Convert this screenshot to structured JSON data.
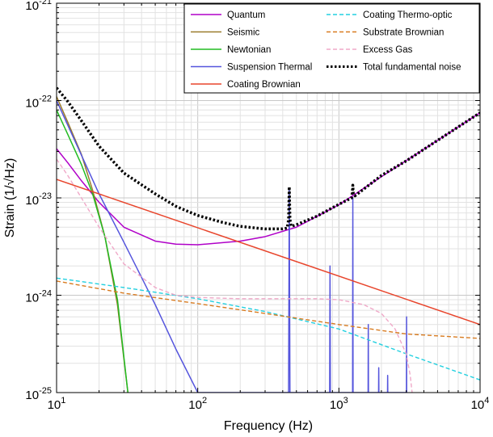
{
  "chart_data": {
    "type": "line",
    "title": "",
    "xlabel": "Frequency (Hz)",
    "ylabel": "Strain (1/√Hz)",
    "xscale": "log",
    "yscale": "log",
    "xlim": [
      10,
      10000
    ],
    "ylim": [
      1e-25,
      1e-21
    ],
    "x_tick_labels": [
      {
        "base": "10",
        "exp": "1"
      },
      {
        "base": "10",
        "exp": "2"
      },
      {
        "base": "10",
        "exp": "3"
      },
      {
        "base": "10",
        "exp": "4"
      }
    ],
    "y_tick_labels": [
      {
        "base": "10",
        "exp": "-25"
      },
      {
        "base": "10",
        "exp": "-24"
      },
      {
        "base": "10",
        "exp": "-23"
      },
      {
        "base": "10",
        "exp": "-22"
      },
      {
        "base": "10",
        "exp": "-21"
      }
    ],
    "grid": true,
    "legend_position": "top-right",
    "series": [
      {
        "name": "Quantum",
        "color": "#b000c8",
        "style": "solid",
        "x": [
          10,
          12,
          15,
          20,
          30,
          50,
          70,
          100,
          200,
          300,
          500,
          1000,
          2000,
          5000,
          10000
        ],
        "y": [
          3.2e-23,
          2.3e-23,
          1.5e-23,
          9e-24,
          5e-24,
          3.6e-24,
          3.35e-24,
          3.3e-24,
          3.6e-24,
          4e-24,
          5e-24,
          8.5e-24,
          1.65e-23,
          3.9e-23,
          7.5e-23
        ]
      },
      {
        "name": "Seismic",
        "color": "#9a7b2c",
        "style": "solid",
        "x": [
          10,
          12,
          15,
          18,
          22,
          27,
          32
        ],
        "y": [
          1.1e-22,
          6e-23,
          2.8e-23,
          1.2e-23,
          4e-24,
          8e-25,
          1e-25
        ]
      },
      {
        "name": "Newtonian",
        "color": "#22bb22",
        "style": "solid",
        "x": [
          10,
          12,
          15,
          18,
          22,
          27,
          32
        ],
        "y": [
          8e-23,
          4.5e-23,
          2.2e-23,
          1.1e-23,
          4e-24,
          9e-25,
          1e-25
        ]
      },
      {
        "name": "Suspension Thermal",
        "color": "#5555dd",
        "style": "solid",
        "x": [
          10,
          20,
          30,
          50,
          70,
          100,
          430,
          440,
          445,
          450,
          455,
          460,
          470,
          850,
          860,
          865,
          870,
          880,
          1240,
          1250,
          1255,
          1260,
          1270,
          1600,
          1610,
          1615,
          1620,
          1900,
          1910,
          1915,
          1920,
          2200,
          2210,
          2215,
          2220,
          3000,
          3010,
          3015,
          3020
        ],
        "y": [
          1e-22,
          1.1e-23,
          3.5e-24,
          8e-25,
          2.8e-25,
          1e-25,
          1e-25,
          1e-25,
          1.2e-23,
          1e-25,
          1e-25,
          1e-25,
          1e-25,
          1e-25,
          1e-25,
          2e-24,
          1e-25,
          1e-25,
          1e-25,
          1e-25,
          1e-23,
          1e-25,
          1e-25,
          1e-25,
          1e-25,
          5e-25,
          1e-25,
          1e-25,
          1e-25,
          1.8e-25,
          1e-25,
          1e-25,
          1e-25,
          1.5e-25,
          1e-25,
          1e-25,
          1e-25,
          6e-25,
          1e-25
        ]
      },
      {
        "name": "Coating Brownian",
        "color": "#e8452c",
        "style": "solid",
        "x": [
          10,
          10000
        ],
        "y": [
          1.55e-23,
          5e-25
        ]
      },
      {
        "name": "Coating Thermo-optic",
        "color": "#22d0e0",
        "style": "dashed",
        "x": [
          10,
          30,
          100,
          300,
          1000,
          3000,
          10000
        ],
        "y": [
          1.5e-24,
          1.2e-24,
          9.2e-25,
          6.8e-25,
          4.5e-25,
          2.5e-25,
          1.35e-25
        ]
      },
      {
        "name": "Substrate Brownian",
        "color": "#d87b20",
        "style": "dashed",
        "x": [
          10,
          30,
          100,
          300,
          1000,
          3000,
          10000
        ],
        "y": [
          1.4e-24,
          1.05e-24,
          8.2e-25,
          6.5e-25,
          5e-25,
          4e-25,
          3.6e-25
        ]
      },
      {
        "name": "Excess Gas",
        "color": "#f0a8c8",
        "style": "dashed",
        "x": [
          10,
          12,
          15,
          20,
          30,
          50,
          70,
          100,
          200,
          400,
          700,
          1000,
          1500,
          2000,
          2500,
          3000,
          3200,
          3300
        ],
        "y": [
          2.5e-23,
          1.7e-23,
          1e-23,
          5e-24,
          2.1e-24,
          1.2e-24,
          1e-24,
          9.5e-25,
          9.2e-25,
          9.2e-25,
          9.2e-25,
          9e-25,
          8e-25,
          6.5e-25,
          4.5e-25,
          2.5e-25,
          1.5e-25,
          1e-25
        ]
      },
      {
        "name": "Total fundamental noise",
        "color": "#000000",
        "style": "dotted",
        "x": [
          10,
          12,
          15,
          20,
          30,
          50,
          70,
          100,
          150,
          200,
          300,
          400,
          430,
          440,
          445,
          450,
          460,
          500,
          700,
          1000,
          1230,
          1245,
          1255,
          1265,
          1300,
          2000,
          3000,
          5000,
          10000
        ],
        "y": [
          1.35e-22,
          9.8e-23,
          6.2e-23,
          3.4e-23,
          1.8e-23,
          1.1e-23,
          8.2e-24,
          6.6e-24,
          5.6e-24,
          5.1e-24,
          4.8e-24,
          4.8e-24,
          4.9e-24,
          6e-24,
          1.3e-23,
          6e-24,
          5.1e-24,
          5.3e-24,
          6.5e-24,
          8.6e-24,
          1e-23,
          1.15e-23,
          1.35e-23,
          1.1e-23,
          1.05e-23,
          1.7e-23,
          2.4e-23,
          3.9e-23,
          7.5e-23
        ]
      }
    ]
  }
}
